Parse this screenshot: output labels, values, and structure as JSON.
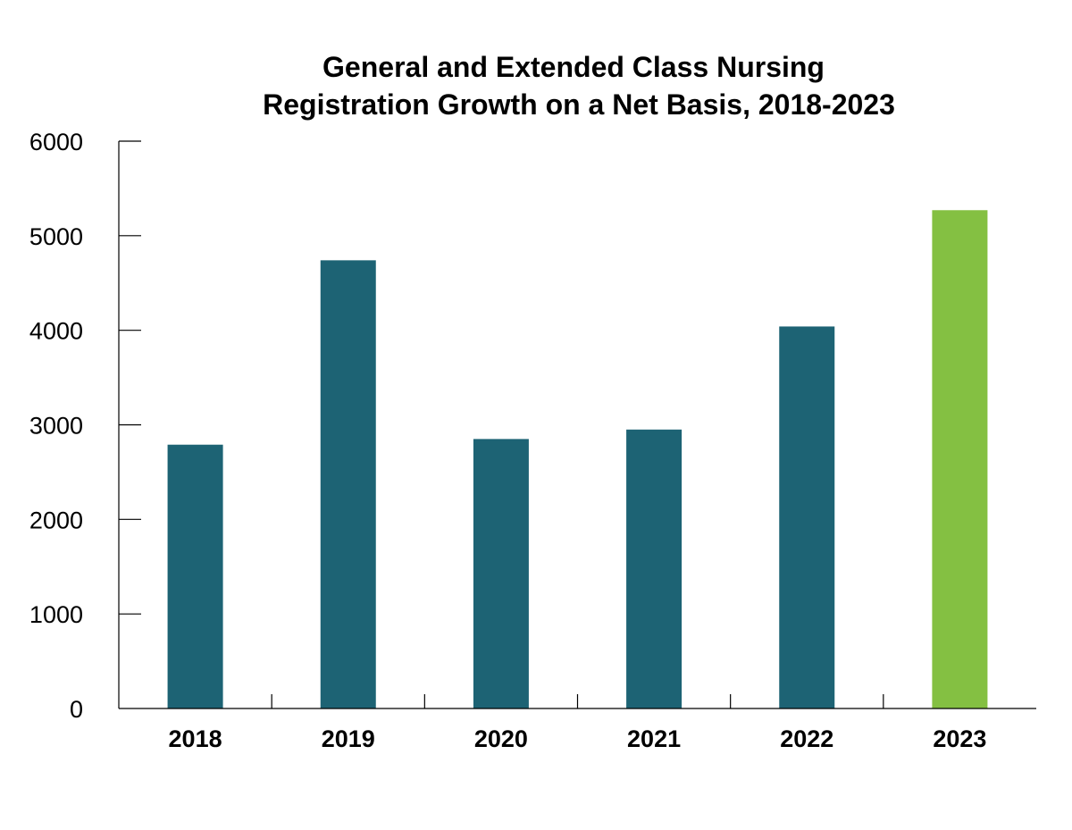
{
  "chart_data": {
    "type": "bar",
    "title_lines": [
      "General and Extended Class Nursing",
      "Registration Growth on a Net Basis, 2018-2023"
    ],
    "xlabel": "",
    "ylabel": "",
    "categories": [
      "2018",
      "2019",
      "2020",
      "2021",
      "2022",
      "2023"
    ],
    "values": [
      2790,
      4740,
      2850,
      2950,
      4040,
      5270
    ],
    "colors": [
      "#1d6374",
      "#1d6374",
      "#1d6374",
      "#1d6374",
      "#1d6374",
      "#84c042"
    ],
    "ylim": [
      0,
      6000
    ],
    "yticks": [
      "0",
      "1000",
      "2000",
      "3000",
      "4000",
      "5000",
      "6000"
    ],
    "grid": false,
    "legend": "none"
  }
}
